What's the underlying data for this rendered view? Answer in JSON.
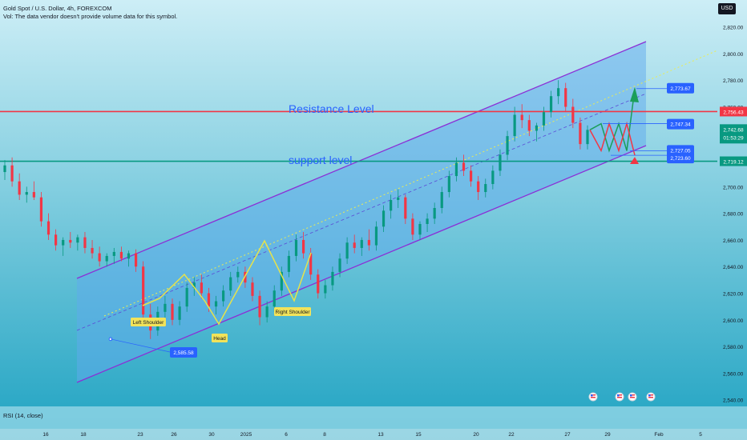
{
  "header": {
    "symbol_line": "Gold Spot / U.S. Dollar, 4h, FOREXCOM",
    "vol_line": "Vol: The data vendor doesn't provide volume data for this symbol.",
    "currency": "USD"
  },
  "indicator": {
    "label": "RSI (14, close)"
  },
  "colors": {
    "background_top": "#cdeef6",
    "background_bottom": "#1fa3c2",
    "channel_fill": "#5fa9ee",
    "channel_border": "#8b2fd6",
    "resistance": "#f23645",
    "support": "#089981",
    "bull": "#089981",
    "bear": "#f23645",
    "label_blue": "#2962ff",
    "pattern_line": "#e6e34a"
  },
  "chart_data": {
    "type": "candlestick",
    "symbol": "Gold Spot / U.S. Dollar",
    "interval": "4h",
    "y_axis": {
      "ylim": [
        2535,
        2830
      ],
      "ticks": [
        "2,820.00",
        "2,800.00",
        "2,780.00",
        "2,760.00",
        "2,740.00",
        "2,720.00",
        "2,700.00",
        "2,680.00",
        "2,660.00",
        "2,640.00",
        "2,620.00",
        "2,600.00",
        "2,580.00",
        "2,560.00",
        "2,540.00"
      ]
    },
    "x_axis": {
      "ticks": [
        "16",
        "18",
        "23",
        "26",
        "30",
        "2025",
        "6",
        "8",
        "13",
        "15",
        "20",
        "22",
        "27",
        "29",
        "Feb",
        "5"
      ]
    },
    "candles": [
      [
        2711,
        2720,
        2705,
        2716
      ],
      [
        2716,
        2722,
        2700,
        2704
      ],
      [
        2704,
        2710,
        2690,
        2694
      ],
      [
        2694,
        2700,
        2688,
        2696
      ],
      [
        2696,
        2704,
        2690,
        2692
      ],
      [
        2692,
        2696,
        2670,
        2674
      ],
      [
        2674,
        2680,
        2660,
        2664
      ],
      [
        2664,
        2668,
        2652,
        2656
      ],
      [
        2656,
        2662,
        2648,
        2660
      ],
      [
        2660,
        2666,
        2654,
        2658
      ],
      [
        2658,
        2664,
        2652,
        2662
      ],
      [
        2662,
        2666,
        2650,
        2654
      ],
      [
        2654,
        2660,
        2646,
        2650
      ],
      [
        2650,
        2655,
        2640,
        2644
      ],
      [
        2644,
        2650,
        2640,
        2648
      ],
      [
        2648,
        2654,
        2642,
        2651
      ],
      [
        2651,
        2655,
        2644,
        2646
      ],
      [
        2646,
        2652,
        2640,
        2650
      ],
      [
        2650,
        2653,
        2636,
        2640
      ],
      [
        2640,
        2644,
        2596,
        2604
      ],
      [
        2604,
        2612,
        2585.58,
        2592
      ],
      [
        2592,
        2610,
        2588,
        2606
      ],
      [
        2606,
        2618,
        2600,
        2612
      ],
      [
        2612,
        2616,
        2596,
        2600
      ],
      [
        2600,
        2614,
        2596,
        2610
      ],
      [
        2610,
        2628,
        2606,
        2624
      ],
      [
        2624,
        2632,
        2618,
        2628
      ],
      [
        2628,
        2634,
        2616,
        2620
      ],
      [
        2620,
        2624,
        2606,
        2610
      ],
      [
        2610,
        2618,
        2604,
        2614
      ],
      [
        2614,
        2626,
        2610,
        2622
      ],
      [
        2622,
        2636,
        2618,
        2632
      ],
      [
        2632,
        2640,
        2628,
        2636
      ],
      [
        2636,
        2640,
        2624,
        2628
      ],
      [
        2628,
        2632,
        2614,
        2618
      ],
      [
        2618,
        2622,
        2596,
        2602
      ],
      [
        2602,
        2614,
        2598,
        2610
      ],
      [
        2610,
        2626,
        2606,
        2622
      ],
      [
        2622,
        2640,
        2618,
        2636
      ],
      [
        2636,
        2652,
        2632,
        2648
      ],
      [
        2648,
        2664,
        2644,
        2660
      ],
      [
        2660,
        2666,
        2646,
        2650
      ],
      [
        2650,
        2654,
        2630,
        2634
      ],
      [
        2634,
        2638,
        2616,
        2620
      ],
      [
        2620,
        2630,
        2616,
        2626
      ],
      [
        2626,
        2640,
        2622,
        2636
      ],
      [
        2636,
        2650,
        2632,
        2646
      ],
      [
        2646,
        2662,
        2642,
        2658
      ],
      [
        2658,
        2664,
        2650,
        2654
      ],
      [
        2654,
        2662,
        2648,
        2660
      ],
      [
        2660,
        2668,
        2652,
        2656
      ],
      [
        2656,
        2674,
        2652,
        2670
      ],
      [
        2670,
        2686,
        2666,
        2682
      ],
      [
        2682,
        2694,
        2676,
        2690
      ],
      [
        2690,
        2698,
        2684,
        2692
      ],
      [
        2692,
        2694,
        2672,
        2676
      ],
      [
        2676,
        2680,
        2660,
        2664
      ],
      [
        2664,
        2674,
        2660,
        2672
      ],
      [
        2672,
        2680,
        2666,
        2676
      ],
      [
        2676,
        2688,
        2672,
        2684
      ],
      [
        2684,
        2700,
        2680,
        2696
      ],
      [
        2696,
        2712,
        2692,
        2708
      ],
      [
        2708,
        2722,
        2704,
        2718
      ],
      [
        2718,
        2724,
        2708,
        2712
      ],
      [
        2712,
        2716,
        2700,
        2704
      ],
      [
        2704,
        2708,
        2690,
        2696
      ],
      [
        2696,
        2706,
        2692,
        2702
      ],
      [
        2702,
        2716,
        2698,
        2712
      ],
      [
        2712,
        2728,
        2708,
        2724
      ],
      [
        2724,
        2742,
        2720,
        2738
      ],
      [
        2738,
        2760,
        2734,
        2754
      ],
      [
        2754,
        2762,
        2744,
        2750
      ],
      [
        2750,
        2754,
        2738,
        2742
      ],
      [
        2742,
        2748,
        2734,
        2746
      ],
      [
        2746,
        2760,
        2742,
        2756
      ],
      [
        2756,
        2772,
        2752,
        2768
      ],
      [
        2768,
        2780,
        2762,
        2774
      ],
      [
        2774,
        2778,
        2756,
        2760
      ],
      [
        2760,
        2766,
        2744,
        2748
      ],
      [
        2748,
        2752,
        2728,
        2732
      ],
      [
        2732,
        2746,
        2728,
        2742.68
      ]
    ],
    "resistance_level": 2756.43,
    "support_level": 2719.12,
    "current_price": 2742.68,
    "projection_points": [
      [
        2742.68,
        2747.34,
        2727.05,
        2747.34,
        2727.05,
        2773.67
      ],
      [
        2742.68,
        2727.05,
        2747.34,
        2727.05,
        2747.34,
        2723.6
      ]
    ],
    "price_labels": [
      "2,773.67",
      "2,747.34",
      "2,727.05",
      "2,723.60",
      "2,585.58"
    ],
    "axis_labels": {
      "resistance": "2,756.43",
      "current": "2,742.68",
      "countdown": "01:53:29",
      "support": "2,719.12"
    },
    "annotations": [
      "Resistance Level",
      "support level",
      "Left Shoulder",
      "Head",
      "Right Shoulder"
    ]
  }
}
